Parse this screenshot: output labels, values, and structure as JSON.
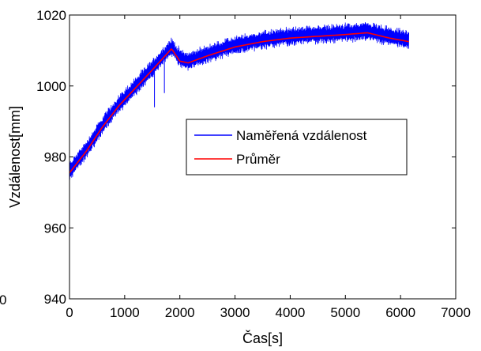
{
  "chart_data": {
    "type": "line",
    "title": "",
    "xlabel": "Čas[s]",
    "ylabel": "Vzdálenost[mm]",
    "xlim": [
      0,
      7000
    ],
    "ylim": [
      940,
      1020
    ],
    "xticks": [
      0,
      1000,
      2000,
      3000,
      4000,
      5000,
      6000,
      7000
    ],
    "yticks": [
      940,
      960,
      980,
      1000,
      1020
    ],
    "xtick_labels": [
      "0",
      "1000",
      "2000",
      "3000",
      "4000",
      "5000",
      "6000",
      "7000"
    ],
    "ytick_labels": [
      "940",
      "960",
      "980",
      "1000",
      "1020"
    ],
    "grid": false,
    "legend_position": "center-right",
    "series": [
      {
        "name": "Naměřená vzdálenost",
        "color": "#0000ff",
        "style": "noisy-band",
        "noise_half_width": 3,
        "x": [
          0,
          300,
          600,
          900,
          1200,
          1500,
          1850,
          2000,
          2150,
          2500,
          3000,
          3500,
          4000,
          4500,
          5000,
          5400,
          5800,
          6150
        ],
        "values": [
          976,
          982,
          989,
          995,
          1000,
          1005,
          1011,
          1008,
          1007,
          1009,
          1011.5,
          1013,
          1014,
          1014.5,
          1015,
          1015.5,
          1014,
          1013
        ],
        "outliers": [
          {
            "x": 1540,
            "y": 994
          },
          {
            "x": 1720,
            "y": 998
          }
        ]
      },
      {
        "name": "Průměr",
        "color": "#ff0000",
        "style": "line",
        "x": [
          0,
          300,
          600,
          900,
          1200,
          1500,
          1850,
          2000,
          2150,
          2500,
          3000,
          3500,
          4000,
          4500,
          5000,
          5400,
          5800,
          6150
        ],
        "values": [
          975.5,
          981.5,
          988.5,
          994.5,
          999.5,
          1004.5,
          1010.5,
          1007,
          1006.5,
          1008.5,
          1011,
          1012.5,
          1013.5,
          1014,
          1014.5,
          1015,
          1013.5,
          1012.5
        ]
      }
    ]
  },
  "edge_text": "0"
}
